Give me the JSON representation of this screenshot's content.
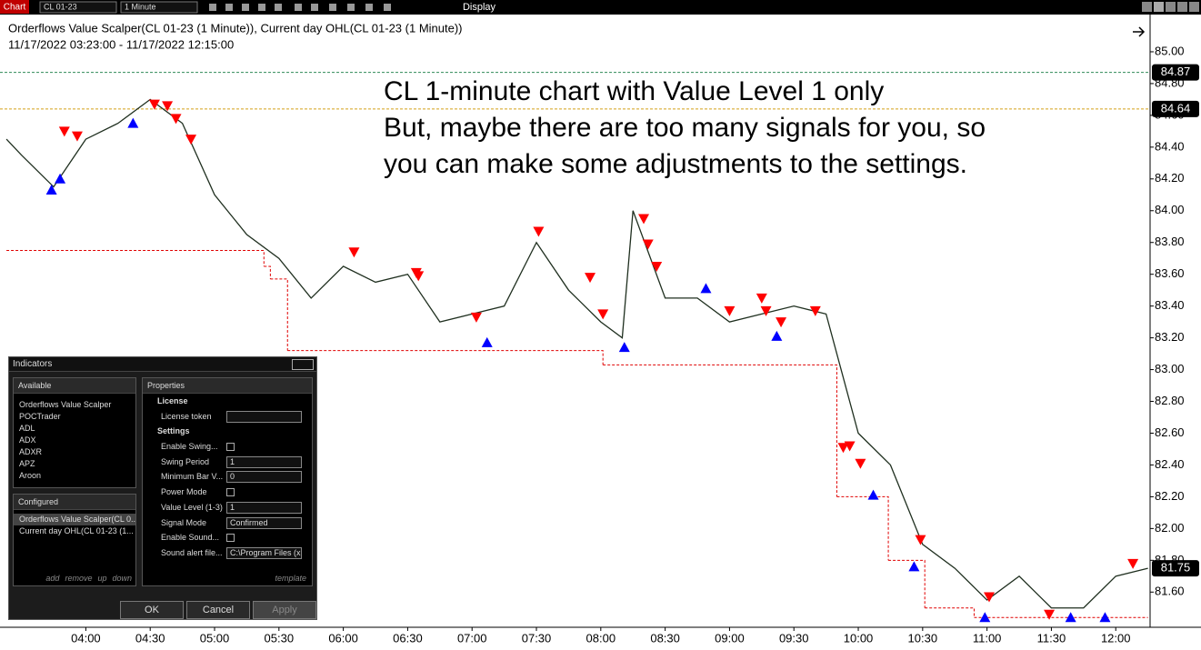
{
  "toolbar": {
    "tab": "Chart",
    "instrument": "CL 01-23",
    "interval": "1 Minute",
    "menu": "Display"
  },
  "chart_data": {
    "type": "line",
    "title": "Orderflows Value Scalper(CL 01-23 (1 Minute)), Current day OHL(CL 01-23 (1 Minute))",
    "subtitle": "11/17/2022 03:23:00 - 11/17/2022 12:15:00",
    "annotations": [
      "CL 1-minute chart with Value Level 1 only",
      "But, maybe there are too many signals for you, so",
      "you can make some adjustments to the settings."
    ],
    "x": [
      "03:23",
      "03:30",
      "03:45",
      "04:00",
      "04:15",
      "04:30",
      "04:45",
      "05:00",
      "05:15",
      "05:30",
      "05:45",
      "06:00",
      "06:15",
      "06:30",
      "06:45",
      "07:00",
      "07:15",
      "07:30",
      "07:45",
      "08:00",
      "08:10",
      "08:15",
      "08:30",
      "08:45",
      "09:00",
      "09:15",
      "09:30",
      "09:45",
      "10:00",
      "10:15",
      "10:30",
      "10:45",
      "11:00",
      "11:15",
      "11:30",
      "11:45",
      "12:00",
      "12:15"
    ],
    "values": [
      84.45,
      84.35,
      84.15,
      84.45,
      84.55,
      84.7,
      84.55,
      84.1,
      83.85,
      83.7,
      83.45,
      83.65,
      83.55,
      83.6,
      83.3,
      83.35,
      83.4,
      83.8,
      83.5,
      83.3,
      83.2,
      84.0,
      83.45,
      83.45,
      83.3,
      83.35,
      83.4,
      83.35,
      82.6,
      82.4,
      81.9,
      81.75,
      81.55,
      81.7,
      81.5,
      81.5,
      81.7,
      81.75
    ],
    "color": "#1f2f1f",
    "day_low": {
      "x": [
        "03:23",
        "05:23",
        "05:26",
        "05:34",
        "08:01",
        "09:50",
        "10:14",
        "10:31",
        "10:54",
        "12:15"
      ],
      "values": [
        83.75,
        83.65,
        83.57,
        83.12,
        83.03,
        82.2,
        81.8,
        81.5,
        81.44,
        81.44
      ],
      "color": "#e00000"
    },
    "sell_signals": {
      "x": [
        "03:50",
        "03:56",
        "04:32",
        "04:38",
        "04:42",
        "04:49",
        "06:05",
        "06:34",
        "06:35",
        "07:02",
        "07:31",
        "07:55",
        "08:01",
        "08:20",
        "08:22",
        "08:26",
        "09:00",
        "09:15",
        "09:17",
        "09:24",
        "09:40",
        "09:53",
        "09:56",
        "10:01",
        "10:29",
        "11:01",
        "11:29",
        "12:08"
      ],
      "values": [
        84.5,
        84.47,
        84.67,
        84.66,
        84.58,
        84.45,
        83.74,
        83.61,
        83.59,
        83.33,
        83.87,
        83.58,
        83.35,
        83.95,
        83.79,
        83.65,
        83.37,
        83.45,
        83.37,
        83.3,
        83.37,
        82.51,
        82.52,
        82.41,
        81.93,
        81.57,
        81.46,
        81.78
      ],
      "color": "#ff0000"
    },
    "buy_signals": {
      "x": [
        "03:44",
        "03:48",
        "04:22",
        "07:07",
        "08:11",
        "08:49",
        "09:22",
        "10:07",
        "10:26",
        "10:59",
        "11:39",
        "11:55"
      ],
      "values": [
        84.13,
        84.2,
        84.55,
        83.17,
        83.14,
        83.51,
        83.21,
        82.21,
        81.76,
        81.44,
        81.44,
        81.44
      ],
      "color": "#0000ff"
    },
    "levels": [
      {
        "value": 84.87,
        "color": "#2e8b57",
        "line": true
      },
      {
        "value": 84.64,
        "color": "#d4a017",
        "line": true
      },
      {
        "value": 81.75,
        "color": "#000000",
        "line": false
      }
    ],
    "xlim": [
      "03:20",
      "12:16"
    ],
    "xticks": [
      "04:00",
      "04:30",
      "05:00",
      "05:30",
      "06:00",
      "06:30",
      "07:00",
      "07:30",
      "08:00",
      "08:30",
      "09:00",
      "09:30",
      "10:00",
      "10:30",
      "11:00",
      "11:30",
      "12:00"
    ],
    "ylim": [
      81.39,
      85.2
    ],
    "yticks": [
      {
        "value": 85,
        "label": "85.00"
      },
      {
        "value": 84.8,
        "label": "84.80"
      },
      {
        "value": 84.6,
        "label": "84.60"
      },
      {
        "value": 84.4,
        "label": "84.40"
      },
      {
        "value": 84.2,
        "label": "84.20"
      },
      {
        "value": 84,
        "label": "84.00"
      },
      {
        "value": 83.8,
        "label": "83.80"
      },
      {
        "value": 83.6,
        "label": "83.60"
      },
      {
        "value": 83.4,
        "label": "83.40"
      },
      {
        "value": 83.2,
        "label": "83.20"
      },
      {
        "value": 83,
        "label": "83.00"
      },
      {
        "value": 82.8,
        "label": "82.80"
      },
      {
        "value": 82.6,
        "label": "82.60"
      },
      {
        "value": 82.4,
        "label": "82.40"
      },
      {
        "value": 82.2,
        "label": "82.20"
      },
      {
        "value": 82,
        "label": "82.00"
      },
      {
        "value": 81.8,
        "label": "81.80"
      },
      {
        "value": 81.6,
        "label": "81.60"
      }
    ]
  },
  "indicators_panel": {
    "title": "Indicators",
    "available": {
      "title": "Available",
      "items": [
        "Orderflows Value Scalper",
        "POCTrader",
        "ADL",
        "ADX",
        "ADXR",
        "APZ",
        "Aroon"
      ]
    },
    "configured": {
      "title": "Configured",
      "items": [
        "Orderflows Value Scalper(CL 0...",
        "Current day OHL(CL 01-23 (1..."
      ],
      "actions": [
        "add",
        "remove",
        "up",
        "down"
      ]
    },
    "properties": {
      "title": "Properties",
      "sections": [
        {
          "name": "License",
          "rows": [
            {
              "label": "License token",
              "control": "text"
            }
          ]
        },
        {
          "name": "Settings",
          "rows": [
            {
              "label": "Enable Swing...",
              "control": "checkbox"
            },
            {
              "label": "Swing Period",
              "control": "text",
              "value": 1
            },
            {
              "label": "Minimum Bar V...",
              "control": "text",
              "value": 0
            },
            {
              "label": "Power Mode",
              "control": "checkbox"
            },
            {
              "label": "Value Level (1-3)",
              "control": "text",
              "value": 1
            },
            {
              "label": "Signal Mode",
              "control": "select",
              "value": "Confirmed"
            },
            {
              "label": "Enable Sound...",
              "control": "checkbox"
            },
            {
              "label": "Sound alert file...",
              "control": "text",
              "value": "C:\\Program Files (x"
            }
          ]
        }
      ],
      "action": "template"
    },
    "buttons": [
      "OK",
      "Cancel",
      "Apply"
    ]
  }
}
